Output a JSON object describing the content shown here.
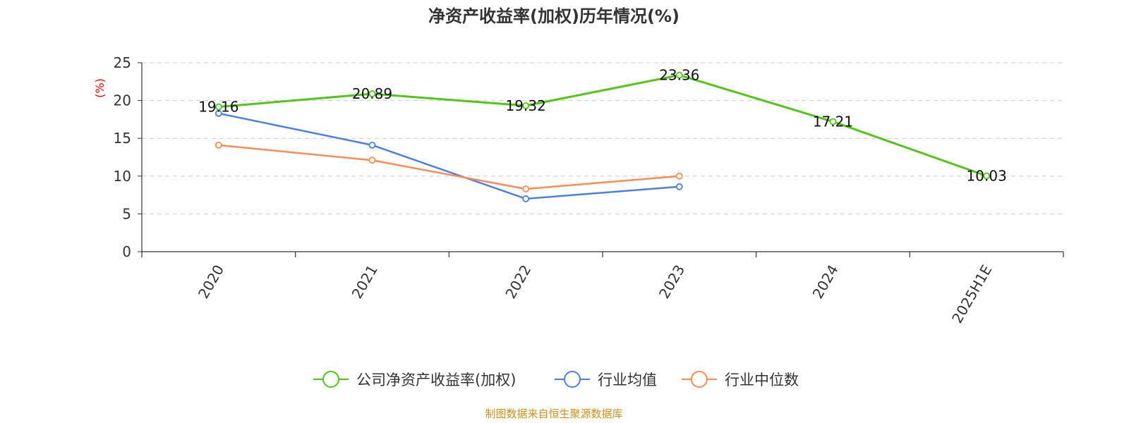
{
  "chart_data": {
    "type": "line",
    "title": "净资产收益率(加权)历年情况(%)",
    "ylabel": "(%)",
    "xlabel": "",
    "categories": [
      "2020",
      "2021",
      "2022",
      "2023",
      "2024",
      "2025H1E"
    ],
    "ylim": [
      0,
      25
    ],
    "yticks": [
      0,
      5,
      10,
      15,
      20,
      25
    ],
    "grid": true,
    "legend_position": "bottom",
    "series": [
      {
        "name": "公司净资产收益率(加权)",
        "color": "#52c41a",
        "values": [
          19.16,
          20.89,
          19.32,
          23.36,
          17.21,
          10.03
        ],
        "labels": [
          "19.16",
          "20.89",
          "19.32",
          "23.36",
          "17.21",
          "10.03"
        ]
      },
      {
        "name": "行业均值",
        "color": "#4a80e0",
        "values": [
          18.3,
          14.1,
          7.0,
          8.6,
          null,
          null
        ]
      },
      {
        "name": "行业中位数",
        "color": "#ff8c55",
        "values": [
          14.1,
          12.1,
          8.3,
          10.0,
          null,
          null
        ]
      }
    ]
  },
  "footer": {
    "source": "制图数据来自恒生聚源数据库"
  }
}
